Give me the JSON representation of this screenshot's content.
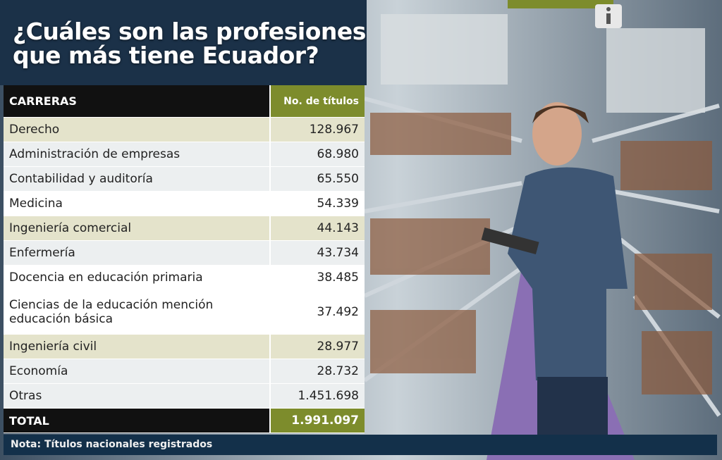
{
  "header": {
    "title_lines": [
      "¿Cuáles son las profesiones",
      "que más tiene Ecuador?"
    ]
  },
  "table": {
    "columns": [
      "CARRERAS",
      "No. de títulos"
    ],
    "rows": [
      [
        "Derecho",
        "128.967"
      ],
      [
        "Administración de empresas",
        "68.980"
      ],
      [
        "Contabilidad y auditoría",
        "65.550"
      ],
      [
        "Medicina",
        "54.339"
      ],
      [
        "Ingeniería comercial",
        "44.143"
      ],
      [
        "Enfermería",
        "43.734"
      ],
      [
        "Docencia en educación primaria",
        "38.485"
      ],
      [
        "Ciencias de la educación mención educación básica",
        "37.492"
      ],
      [
        "Ingeniería civil",
        "28.977"
      ],
      [
        "Economía",
        "28.732"
      ],
      [
        "Otras",
        "1.451.698"
      ]
    ],
    "total": [
      "TOTAL",
      "1.991.097"
    ]
  },
  "footer": {
    "note": "Nota: Títulos nacionales registrados"
  }
}
